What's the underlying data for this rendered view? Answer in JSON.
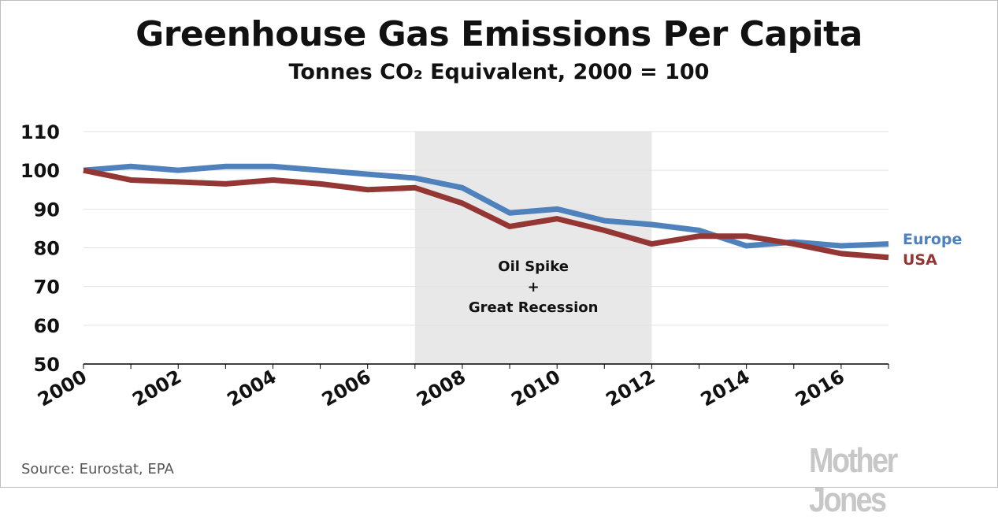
{
  "chart_data": {
    "type": "line",
    "title": "Greenhouse Gas Emissions Per Capita",
    "subtitle": "Tonnes CO₂ Equivalent, 2000 = 100",
    "x": [
      2000,
      2001,
      2002,
      2003,
      2004,
      2005,
      2006,
      2007,
      2008,
      2009,
      2010,
      2011,
      2012,
      2013,
      2014,
      2015,
      2016,
      2017
    ],
    "x_ticks": [
      "2000",
      "2002",
      "2004",
      "2006",
      "2008",
      "2010",
      "2012",
      "2014",
      "2016"
    ],
    "y_ticks": [
      "50",
      "60",
      "70",
      "80",
      "90",
      "100",
      "110"
    ],
    "xlim": [
      2000,
      2017
    ],
    "ylim": [
      50,
      110
    ],
    "grid": true,
    "series": [
      {
        "name": "Europe",
        "color": "#4f81bd",
        "values": [
          100,
          101,
          100,
          101,
          101,
          100,
          99,
          98,
          95.5,
          89,
          90,
          87,
          86,
          84.5,
          80.5,
          81.5,
          80.5,
          81
        ]
      },
      {
        "name": "USA",
        "color": "#943634",
        "values": [
          100,
          97.5,
          97,
          96.5,
          97.5,
          96.5,
          95,
          95.5,
          91.5,
          85.5,
          87.5,
          84.5,
          81,
          83,
          83,
          81,
          78.5,
          77.5
        ]
      }
    ],
    "annotations": [
      {
        "type": "shaded-region",
        "x_range": [
          2007,
          2012
        ],
        "lines": [
          "Oil Spike",
          "+",
          "Great Recession"
        ]
      }
    ]
  },
  "source": "Source: Eurostat, EPA",
  "logo": "Mother Jones"
}
